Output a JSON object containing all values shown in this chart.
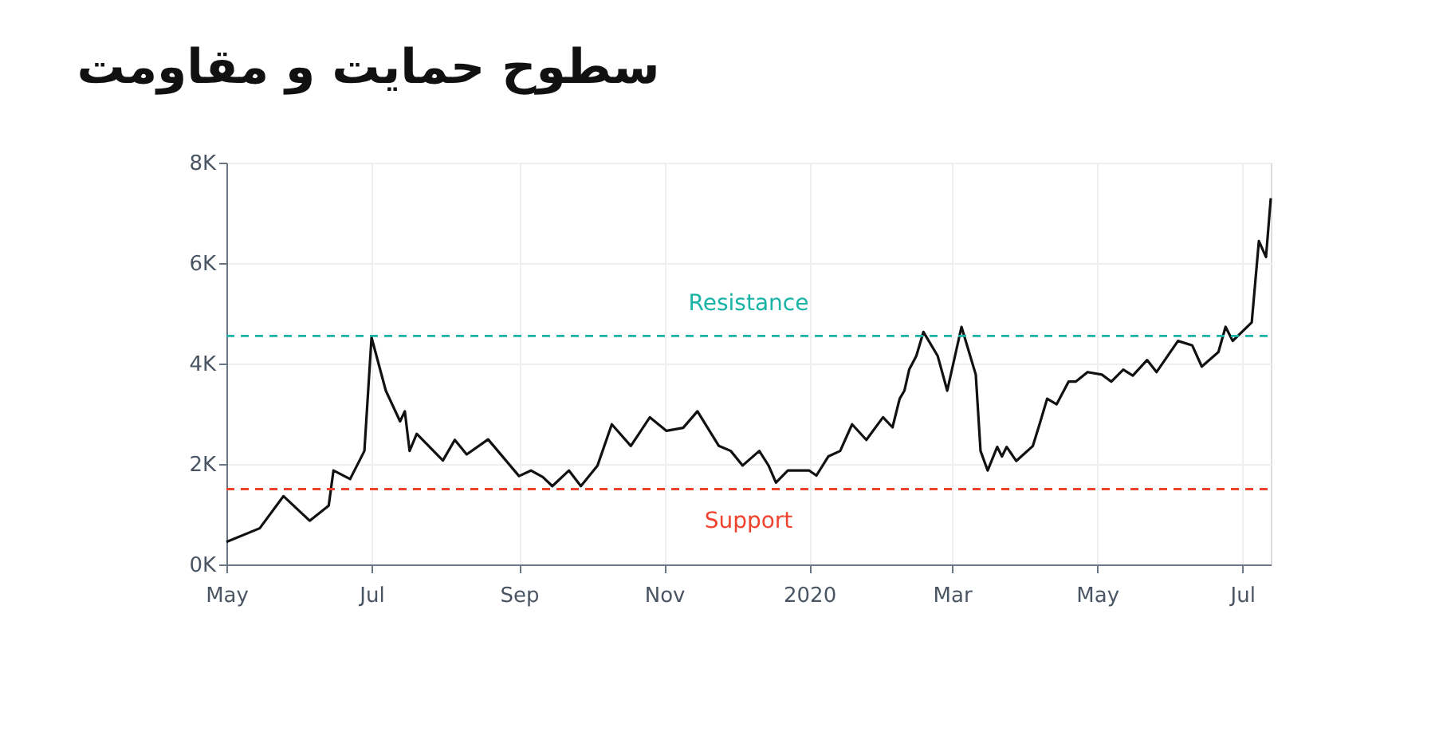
{
  "chart_data": {
    "type": "line",
    "title": "سطوح حمایت و مقاومت",
    "x": [
      "2019-05-01",
      "2019-05-15",
      "2019-05-25",
      "2019-06-05",
      "2019-06-13",
      "2019-06-15",
      "2019-06-22",
      "2019-06-28",
      "2019-07-01",
      "2019-07-07",
      "2019-07-13",
      "2019-07-15",
      "2019-07-17",
      "2019-07-20",
      "2019-07-31",
      "2019-08-05",
      "2019-08-10",
      "2019-08-19",
      "2019-09-01",
      "2019-09-06",
      "2019-09-11",
      "2019-09-15",
      "2019-09-22",
      "2019-09-27",
      "2019-10-04",
      "2019-10-10",
      "2019-10-18",
      "2019-10-26",
      "2019-11-02",
      "2019-11-09",
      "2019-11-15",
      "2019-11-24",
      "2019-11-29",
      "2019-12-04",
      "2019-12-11",
      "2019-12-15",
      "2019-12-18",
      "2019-12-23",
      "2020-01-01",
      "2020-01-04",
      "2020-01-09",
      "2020-01-14",
      "2020-01-19",
      "2020-01-25",
      "2020-02-01",
      "2020-02-05",
      "2020-02-08",
      "2020-02-10",
      "2020-02-12",
      "2020-02-15",
      "2020-02-18",
      "2020-02-24",
      "2020-02-28",
      "2020-03-05",
      "2020-03-11",
      "2020-03-13",
      "2020-03-16",
      "2020-03-20",
      "2020-03-22",
      "2020-03-24",
      "2020-03-28",
      "2020-04-04",
      "2020-04-07",
      "2020-04-10",
      "2020-04-14",
      "2020-04-19",
      "2020-04-22",
      "2020-04-27",
      "2020-05-03",
      "2020-05-07",
      "2020-05-12",
      "2020-05-16",
      "2020-05-22",
      "2020-05-26",
      "2020-06-04",
      "2020-06-10",
      "2020-06-14",
      "2020-06-21",
      "2020-06-24",
      "2020-06-27",
      "2020-07-05",
      "2020-07-08",
      "2020-07-11",
      "2020-07-13"
    ],
    "series": [
      {
        "color": "#111111",
        "values": [
          450,
          720,
          1360,
          870,
          1170,
          1870,
          1700,
          2260,
          4520,
          3460,
          2850,
          3050,
          2260,
          2600,
          2070,
          2480,
          2190,
          2490,
          1760,
          1870,
          1740,
          1560,
          1870,
          1560,
          1970,
          2790,
          2360,
          2930,
          2660,
          2720,
          3050,
          2360,
          2260,
          1970,
          2260,
          1960,
          1630,
          1870,
          1870,
          1770,
          2150,
          2260,
          2790,
          2480,
          2930,
          2730,
          3300,
          3460,
          3880,
          4150,
          4630,
          4150,
          3460,
          4730,
          3780,
          2260,
          1870,
          2340,
          2150,
          2340,
          2060,
          2360,
          2820,
          3300,
          3190,
          3640,
          3640,
          3830,
          3780,
          3640,
          3880,
          3760,
          4070,
          3830,
          4450,
          4360,
          3940,
          4230,
          4730,
          4450,
          4820,
          6440,
          6120,
          7290
        ]
      }
    ],
    "xlim": [
      "2019-05-01",
      "2020-07-13"
    ],
    "xticks": [
      {
        "value": "2019-05-01",
        "label": "May"
      },
      {
        "value": "2019-07-01",
        "label": "Jul"
      },
      {
        "value": "2019-09-01",
        "label": "Sep"
      },
      {
        "value": "2019-11-01",
        "label": "Nov"
      },
      {
        "value": "2020-01-01",
        "label": "2020"
      },
      {
        "value": "2020-03-01",
        "label": "Mar"
      },
      {
        "value": "2020-05-01",
        "label": "May"
      },
      {
        "value": "2020-07-01",
        "label": "Jul"
      }
    ],
    "ylim": [
      0,
      8000
    ],
    "yticks": [
      {
        "value": 0,
        "label": "0K"
      },
      {
        "value": 2000,
        "label": "2K"
      },
      {
        "value": 4000,
        "label": "4K"
      },
      {
        "value": 6000,
        "label": "6K"
      },
      {
        "value": 8000,
        "label": "8K"
      }
    ],
    "ref_lines": [
      {
        "axis": "y",
        "value": 4550,
        "label": "Resistance",
        "color": "#1ab3a6",
        "line_style": "dashed"
      },
      {
        "axis": "y",
        "value": 1500,
        "label": "Support",
        "color": "#f0432f",
        "line_style": "dashed"
      }
    ],
    "grid": true,
    "marker": "none",
    "line_style": "solid"
  }
}
